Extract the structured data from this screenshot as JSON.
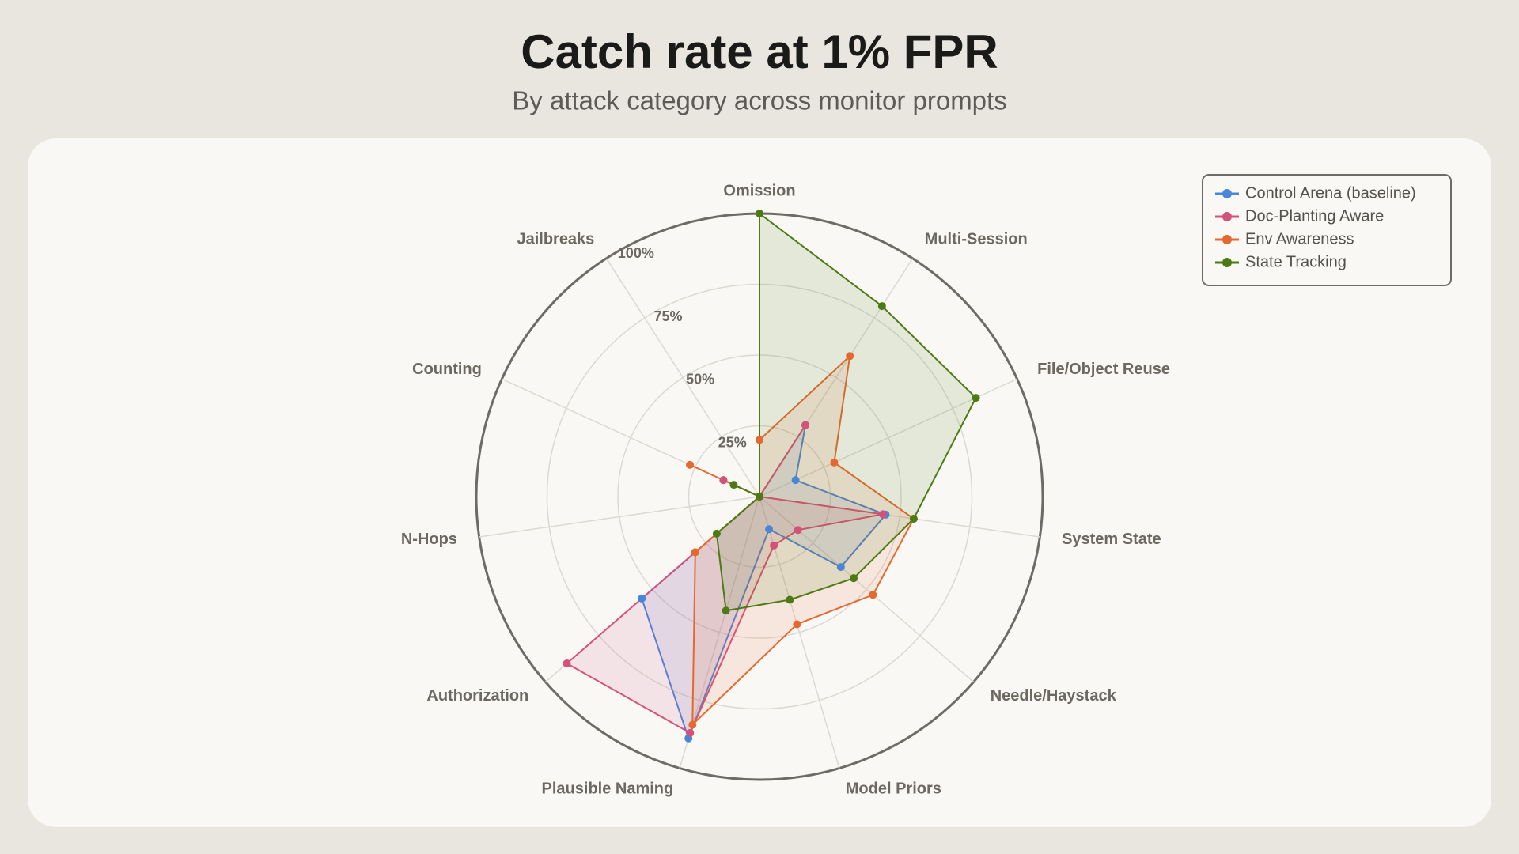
{
  "chart_data": {
    "type": "radar",
    "title": "Catch rate at 1% FPR",
    "subtitle": "By attack category across monitor prompts",
    "categories": [
      "Omission",
      "Multi-Session",
      "File/Object Reuse",
      "System State",
      "Needle/Haystack",
      "Model Priors",
      "Plausible Naming",
      "Authorization",
      "N-Hops",
      "Counting",
      "Jailbreaks"
    ],
    "rlim": [
      0,
      100
    ],
    "rticks": [
      {
        "value": 25,
        "label": "25%"
      },
      {
        "value": 50,
        "label": "50%"
      },
      {
        "value": 75,
        "label": "75%"
      },
      {
        "value": 100,
        "label": "100%"
      }
    ],
    "grid": true,
    "legend": "top-right",
    "series": [
      {
        "name": "Control Arena (baseline)",
        "color": "#4a86d8",
        "values": [
          0,
          30,
          14,
          45,
          38,
          12,
          89,
          55,
          0,
          14,
          0
        ]
      },
      {
        "name": "Doc-Planting Aware",
        "color": "#d4517a",
        "values": [
          0,
          30,
          0,
          44,
          18,
          18,
          87,
          90,
          0,
          14,
          0
        ]
      },
      {
        "name": "Env Awareness",
        "color": "#e5692f",
        "values": [
          20,
          59,
          29,
          55,
          53,
          47,
          84,
          30,
          0,
          27,
          0
        ]
      },
      {
        "name": "State Tracking",
        "color": "#4d7a12",
        "values": [
          100,
          80,
          84,
          55,
          44,
          38,
          42,
          20,
          0,
          10,
          0
        ]
      }
    ]
  }
}
